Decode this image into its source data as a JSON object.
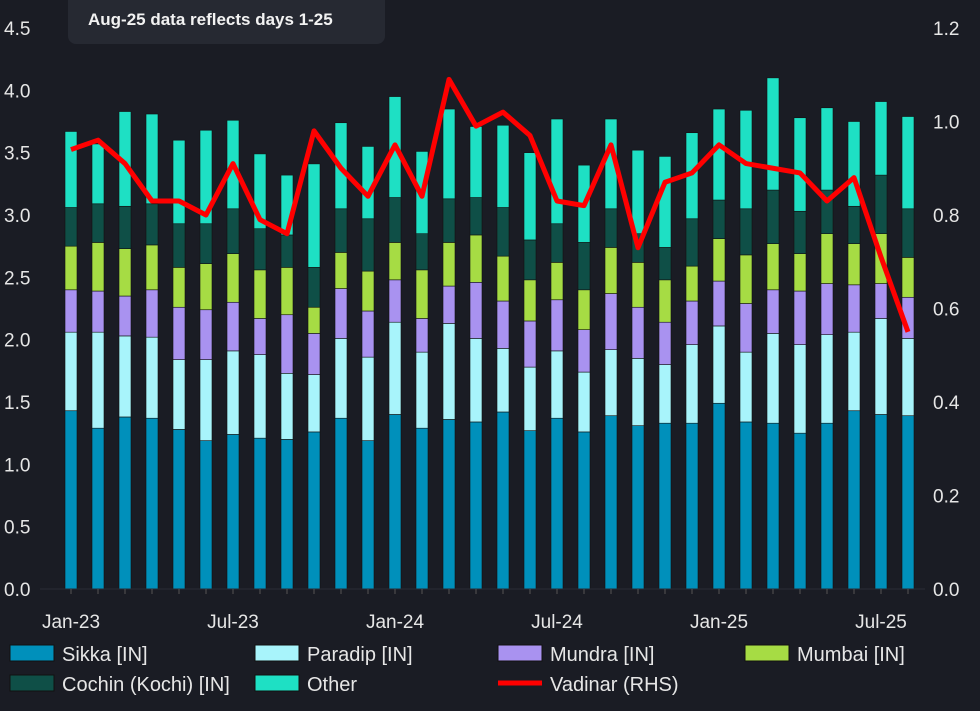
{
  "chart_data": {
    "type": "bar",
    "stacked": true,
    "annotation": "Aug-25 data reflects days 1-25",
    "categories": [
      "Jan-23",
      "Feb-23",
      "Mar-23",
      "Apr-23",
      "May-23",
      "Jun-23",
      "Jul-23",
      "Aug-23",
      "Sep-23",
      "Oct-23",
      "Nov-23",
      "Dec-23",
      "Jan-24",
      "Feb-24",
      "Mar-24",
      "Apr-24",
      "May-24",
      "Jun-24",
      "Jul-24",
      "Aug-24",
      "Sep-24",
      "Oct-24",
      "Nov-24",
      "Dec-24",
      "Jan-25",
      "Feb-25",
      "Mar-25",
      "Apr-25",
      "May-25",
      "Jun-25",
      "Jul-25",
      "Aug-25"
    ],
    "x_tick_labels": [
      "Jan-23",
      "Jul-23",
      "Jan-24",
      "Jul-24",
      "Jan-25",
      "Jul-25"
    ],
    "y_left": {
      "range": [
        0,
        4.5
      ],
      "ticks": [
        "0.0",
        "0.5",
        "1.0",
        "1.5",
        "2.0",
        "2.5",
        "3.0",
        "3.5",
        "4.0",
        "4.5"
      ]
    },
    "y_right": {
      "range": [
        0,
        1.2
      ],
      "ticks": [
        "0.0",
        "0.2",
        "0.4",
        "0.6",
        "0.8",
        "1.0",
        "1.2"
      ]
    },
    "grid": false,
    "legend_placement": "bottom",
    "series": [
      {
        "name": "Sikka [IN]",
        "color": "#0090bb",
        "values": [
          1.43,
          1.29,
          1.38,
          1.37,
          1.28,
          1.19,
          1.24,
          1.21,
          1.2,
          1.26,
          1.37,
          1.19,
          1.4,
          1.29,
          1.36,
          1.34,
          1.42,
          1.27,
          1.37,
          1.26,
          1.39,
          1.31,
          1.33,
          1.33,
          1.49,
          1.34,
          1.33,
          1.25,
          1.33,
          1.43,
          1.4,
          1.39
        ]
      },
      {
        "name": "Paradip [IN]",
        "color": "#a8f4fb",
        "values": [
          0.63,
          0.77,
          0.65,
          0.65,
          0.56,
          0.65,
          0.67,
          0.67,
          0.53,
          0.46,
          0.64,
          0.67,
          0.74,
          0.61,
          0.77,
          0.67,
          0.51,
          0.51,
          0.54,
          0.48,
          0.53,
          0.54,
          0.47,
          0.63,
          0.62,
          0.56,
          0.72,
          0.71,
          0.71,
          0.63,
          0.77,
          0.62
        ]
      },
      {
        "name": "Mundra [IN]",
        "color": "#a992f0",
        "values": [
          0.34,
          0.33,
          0.32,
          0.38,
          0.42,
          0.4,
          0.39,
          0.29,
          0.47,
          0.33,
          0.4,
          0.37,
          0.34,
          0.27,
          0.3,
          0.45,
          0.38,
          0.37,
          0.41,
          0.34,
          0.45,
          0.41,
          0.34,
          0.35,
          0.36,
          0.39,
          0.35,
          0.43,
          0.41,
          0.38,
          0.28,
          0.33
        ]
      },
      {
        "name": "Mumbai [IN]",
        "color": "#a6dc44",
        "values": [
          0.35,
          0.39,
          0.38,
          0.36,
          0.32,
          0.37,
          0.39,
          0.39,
          0.38,
          0.21,
          0.29,
          0.32,
          0.3,
          0.39,
          0.35,
          0.38,
          0.36,
          0.33,
          0.3,
          0.32,
          0.37,
          0.36,
          0.34,
          0.28,
          0.34,
          0.39,
          0.37,
          0.3,
          0.4,
          0.33,
          0.4,
          0.32
        ]
      },
      {
        "name": "Cochin (Kochi) [IN]",
        "color": "#0f4f47",
        "values": [
          0.31,
          0.31,
          0.34,
          0.33,
          0.35,
          0.32,
          0.36,
          0.33,
          0.26,
          0.32,
          0.35,
          0.42,
          0.36,
          0.29,
          0.35,
          0.3,
          0.39,
          0.32,
          0.31,
          0.38,
          0.31,
          0.23,
          0.26,
          0.38,
          0.31,
          0.37,
          0.43,
          0.34,
          0.35,
          0.3,
          0.47,
          0.39
        ]
      },
      {
        "name": "Other",
        "color": "#1ee0c4",
        "values": [
          0.61,
          0.48,
          0.76,
          0.72,
          0.67,
          0.75,
          0.71,
          0.6,
          0.48,
          0.83,
          0.69,
          0.58,
          0.81,
          0.66,
          0.72,
          0.57,
          0.66,
          0.7,
          0.84,
          0.62,
          0.72,
          0.67,
          0.73,
          0.69,
          0.73,
          0.79,
          0.9,
          0.75,
          0.66,
          0.68,
          0.59,
          0.74
        ]
      }
    ],
    "line_series": {
      "name": "Vadinar (RHS)",
      "color": "#ff0000",
      "axis": "right",
      "values": [
        0.94,
        0.96,
        0.91,
        0.83,
        0.83,
        0.8,
        0.91,
        0.79,
        0.76,
        0.98,
        0.9,
        0.84,
        0.95,
        0.84,
        1.09,
        0.99,
        1.02,
        0.97,
        0.83,
        0.82,
        0.95,
        0.73,
        0.87,
        0.89,
        0.95,
        0.91,
        0.9,
        0.89,
        0.83,
        0.88,
        0.71,
        0.55
      ]
    }
  }
}
